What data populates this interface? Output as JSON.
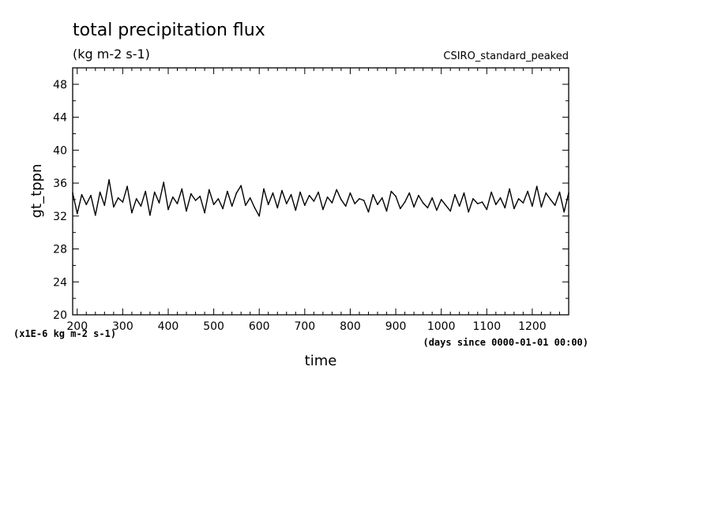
{
  "header": {
    "title": "total precipitation flux",
    "units": "(kg m-2 s-1)",
    "dataset": "CSIRO_standard_peaked"
  },
  "chart_data": {
    "type": "line",
    "title": "total precipitation flux",
    "subtitle": "(kg m-2 s-1)",
    "xlabel": "time",
    "ylabel": "gt_tppn",
    "x_units": "(days since 0000-01-01 00:00)",
    "y_scale_note": "(x1E-6 kg m-2 s-1)",
    "xlim": [
      190,
      1280
    ],
    "ylim": [
      20,
      50
    ],
    "x_ticks": [
      200,
      300,
      400,
      500,
      600,
      700,
      800,
      900,
      1000,
      1100,
      1200
    ],
    "y_ticks": [
      20,
      24,
      28,
      32,
      36,
      40,
      44,
      48
    ],
    "grid": false,
    "series": [
      {
        "x": [
          190,
          200,
          210,
          220,
          230,
          240,
          250,
          260,
          270,
          280,
          290,
          300,
          310,
          320,
          330,
          340,
          350,
          360,
          370,
          380,
          390,
          400,
          410,
          420,
          430,
          440,
          450,
          460,
          470,
          480,
          490,
          500,
          510,
          520,
          530,
          540,
          550,
          560,
          570,
          580,
          590,
          600,
          610,
          620,
          630,
          640,
          650,
          660,
          670,
          680,
          690,
          700,
          710,
          720,
          730,
          740,
          750,
          760,
          770,
          780,
          790,
          800,
          810,
          820,
          830,
          840,
          850,
          860,
          870,
          880,
          890,
          900,
          910,
          920,
          930,
          940,
          950,
          960,
          970,
          980,
          990,
          1000,
          1010,
          1020,
          1030,
          1040,
          1050,
          1060,
          1070,
          1080,
          1090,
          1100,
          1110,
          1120,
          1130,
          1140,
          1150,
          1160,
          1170,
          1180,
          1190,
          1200,
          1210,
          1220,
          1230,
          1240,
          1250,
          1260,
          1270,
          1280
        ],
        "y": [
          34.8,
          32.3,
          34.6,
          33.4,
          34.5,
          32.1,
          34.9,
          33.3,
          36.4,
          33.1,
          34.2,
          33.7,
          35.6,
          32.4,
          34.1,
          33.2,
          35.0,
          32.1,
          34.9,
          33.6,
          36.1,
          32.8,
          34.3,
          33.5,
          35.3,
          32.6,
          34.7,
          33.9,
          34.4,
          32.4,
          35.2,
          33.4,
          34.1,
          32.9,
          35.0,
          33.2,
          34.8,
          35.7,
          33.3,
          34.2,
          33.0,
          32.0,
          35.3,
          33.4,
          34.8,
          33.0,
          35.1,
          33.5,
          34.6,
          32.7,
          34.9,
          33.3,
          34.5,
          33.8,
          34.9,
          32.8,
          34.3,
          33.6,
          35.2,
          34.0,
          33.2,
          34.8,
          33.5,
          34.1,
          33.9,
          32.5,
          34.6,
          33.4,
          34.2,
          32.6,
          35.0,
          34.4,
          32.9,
          33.7,
          34.8,
          33.1,
          34.5,
          33.6,
          33.0,
          34.2,
          32.7,
          34.0,
          33.3,
          32.6,
          34.6,
          33.2,
          34.8,
          32.5,
          34.1,
          33.5,
          33.7,
          32.8,
          34.9,
          33.4,
          34.2,
          33.0,
          35.3,
          32.9,
          34.1,
          33.6,
          35.0,
          33.2,
          35.6,
          33.1,
          34.8,
          34.0,
          33.3,
          34.9,
          32.5,
          34.8
        ]
      }
    ]
  }
}
